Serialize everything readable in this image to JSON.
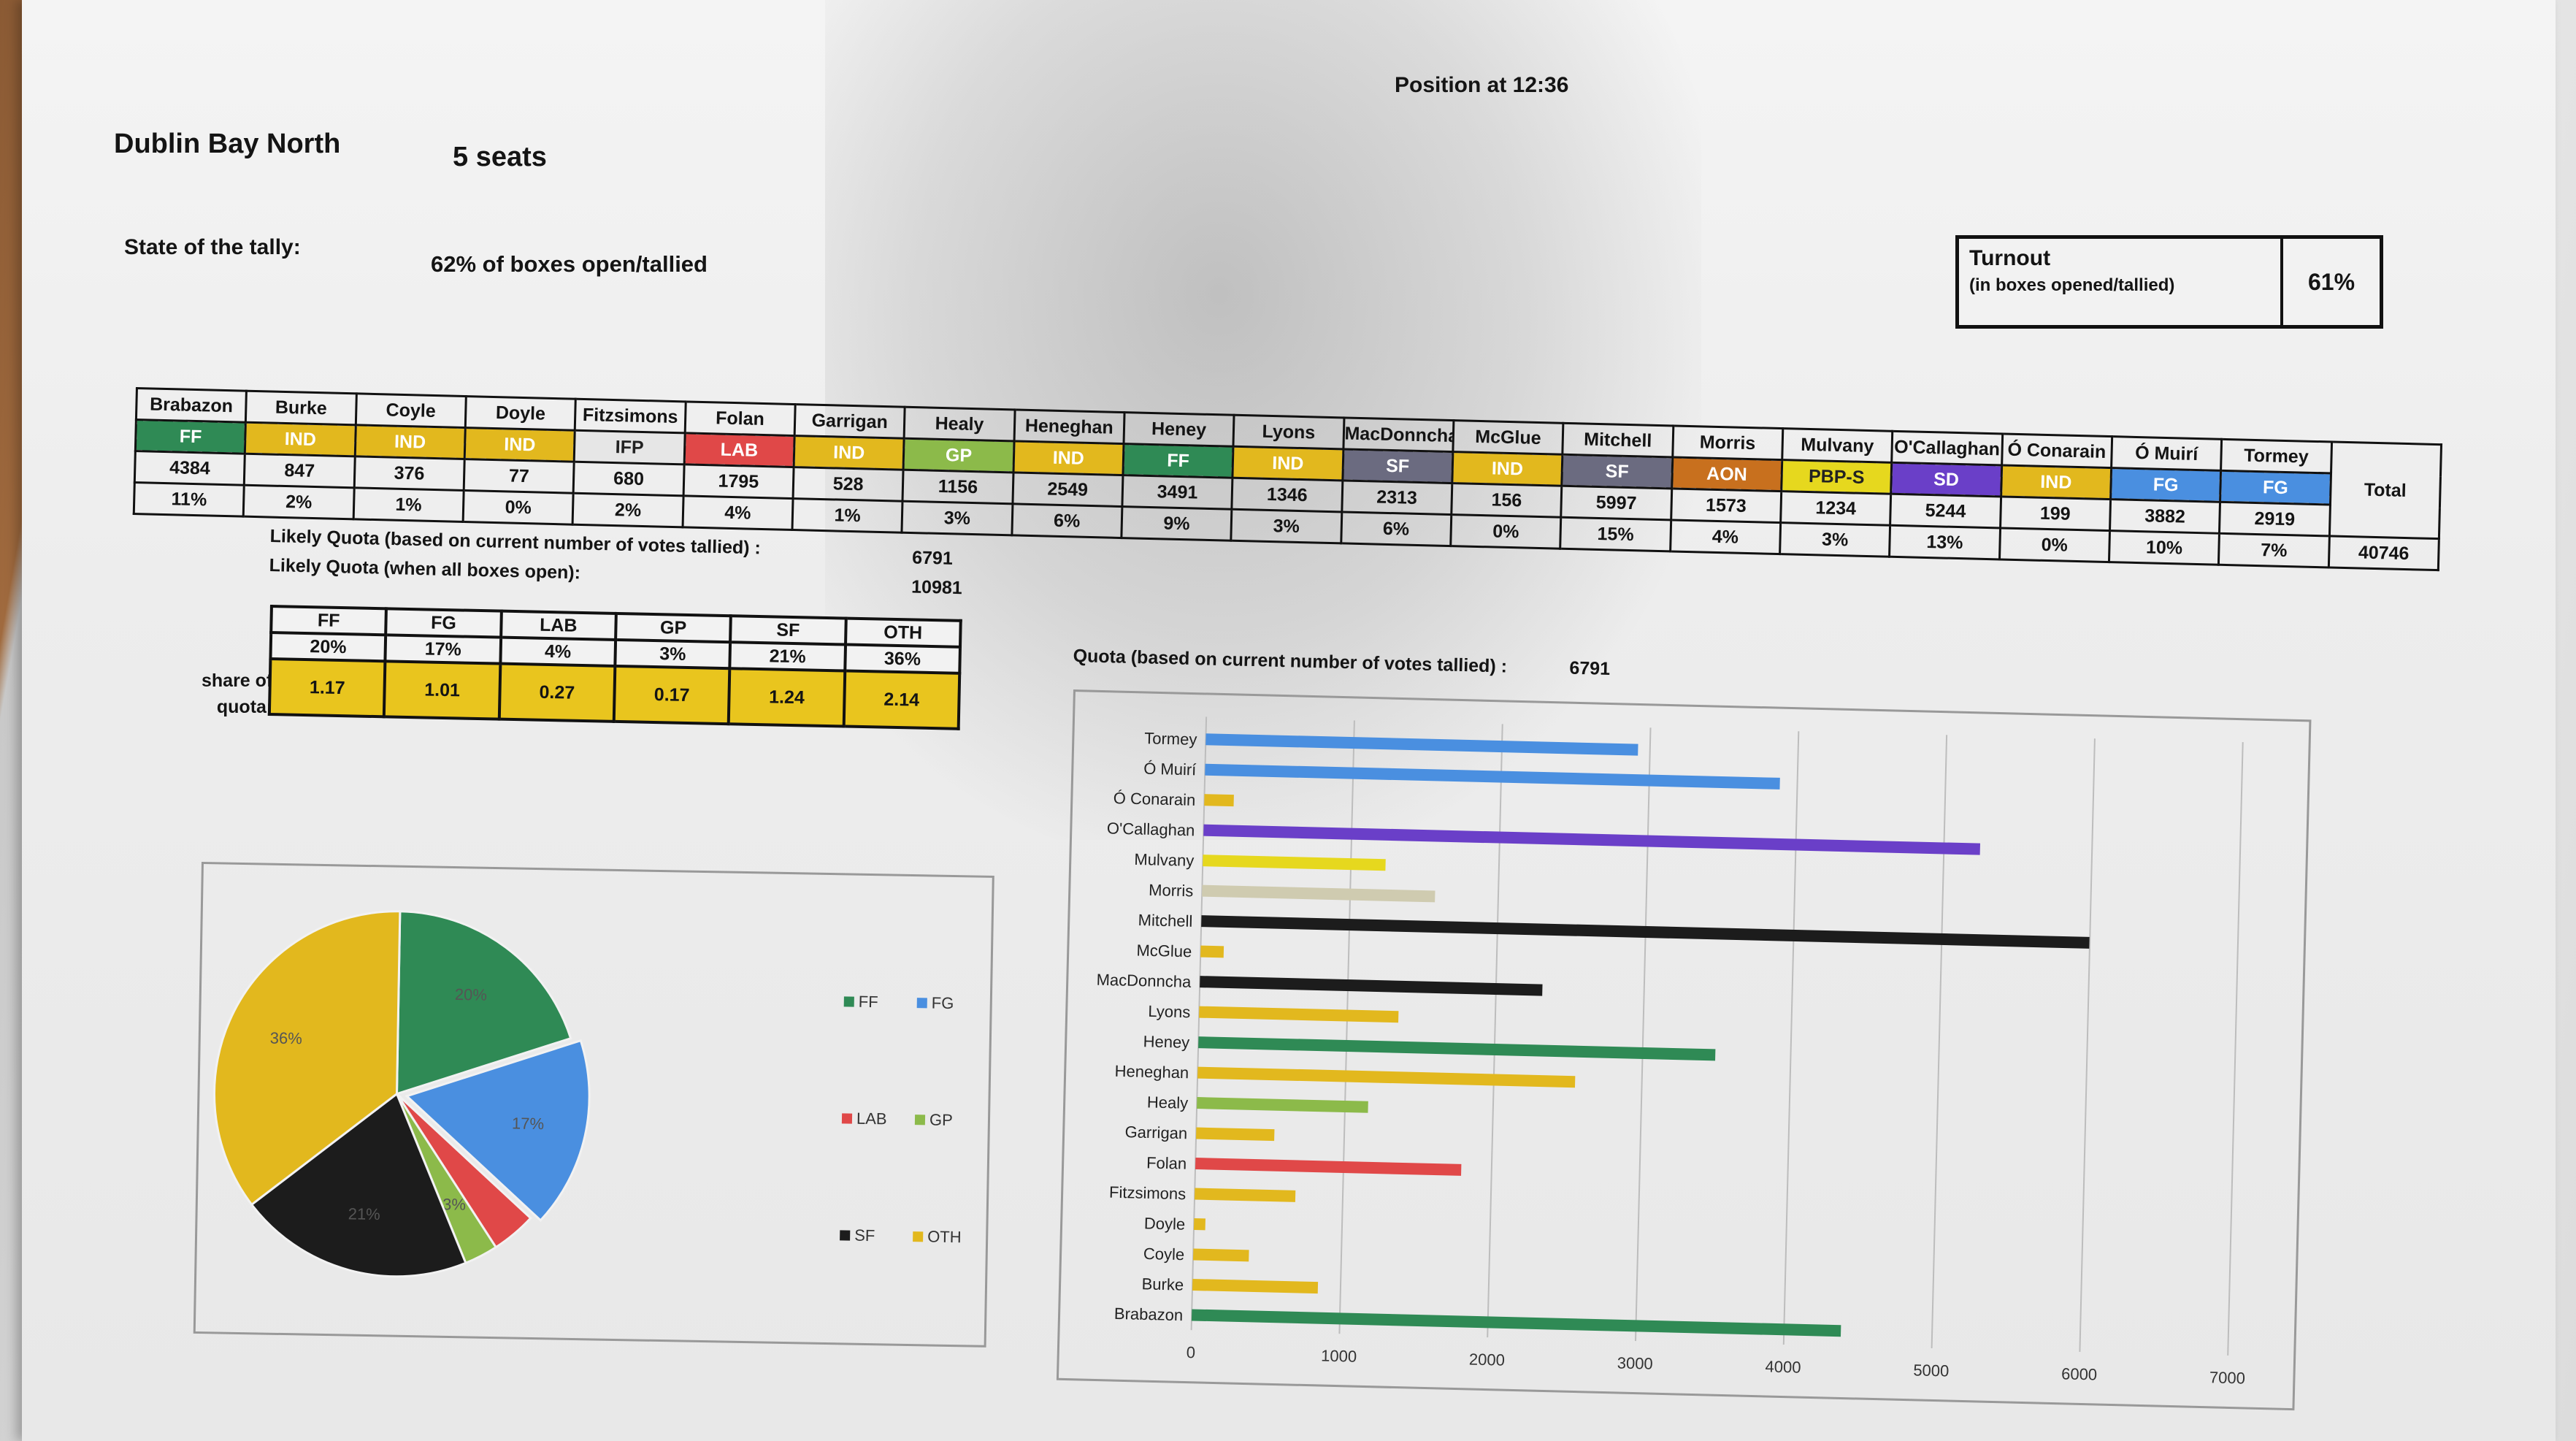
{
  "header": {
    "position": "Position at 12:36",
    "constituency": "Dublin Bay North",
    "seats": "5 seats",
    "state_label": "State of the tally:",
    "state_value": "62% of boxes open/tallied"
  },
  "turnout": {
    "label": "Turnout",
    "sublabel": "(in boxes opened/tallied)",
    "value": "61%"
  },
  "party_colors": {
    "FF": "#2f8a55",
    "FG": "#4a8fe0",
    "LAB": "#e04848",
    "GP": "#8cba4a",
    "SF": "#6b6b80",
    "IND": "#e2b81e",
    "IFP": "#e6e6e6",
    "AON": "#c8701e",
    "PBP-S": "#e6d81e",
    "SD": "#6a3fc8"
  },
  "candidates": [
    {
      "name": "Brabazon",
      "party": "FF",
      "votes": "4384",
      "pct": "11%"
    },
    {
      "name": "Burke",
      "party": "IND",
      "votes": "847",
      "pct": "2%"
    },
    {
      "name": "Coyle",
      "party": "IND",
      "votes": "376",
      "pct": "1%"
    },
    {
      "name": "Doyle",
      "party": "IND",
      "votes": "77",
      "pct": "0%"
    },
    {
      "name": "Fitzsimons",
      "party": "IFP",
      "votes": "680",
      "pct": "2%"
    },
    {
      "name": "Folan",
      "party": "LAB",
      "votes": "1795",
      "pct": "4%"
    },
    {
      "name": "Garrigan",
      "party": "IND",
      "votes": "528",
      "pct": "1%"
    },
    {
      "name": "Healy",
      "party": "GP",
      "votes": "1156",
      "pct": "3%"
    },
    {
      "name": "Heneghan",
      "party": "IND",
      "votes": "2549",
      "pct": "6%"
    },
    {
      "name": "Heney",
      "party": "FF",
      "votes": "3491",
      "pct": "9%"
    },
    {
      "name": "Lyons",
      "party": "IND",
      "votes": "1346",
      "pct": "3%"
    },
    {
      "name": "MacDonncha",
      "party": "SF",
      "votes": "2313",
      "pct": "6%"
    },
    {
      "name": "McGlue",
      "party": "IND",
      "votes": "156",
      "pct": "0%"
    },
    {
      "name": "Mitchell",
      "party": "SF",
      "votes": "5997",
      "pct": "15%"
    },
    {
      "name": "Morris",
      "party": "AON",
      "votes": "1573",
      "pct": "4%"
    },
    {
      "name": "Mulvany",
      "party": "PBP-S",
      "votes": "1234",
      "pct": "3%"
    },
    {
      "name": "O'Callaghan",
      "party": "SD",
      "votes": "5244",
      "pct": "13%"
    },
    {
      "name": "Ó Conarain",
      "party": "IND",
      "votes": "199",
      "pct": "0%"
    },
    {
      "name": "Ó Muirí",
      "party": "FG",
      "votes": "3882",
      "pct": "10%"
    },
    {
      "name": "Tormey",
      "party": "FG",
      "votes": "2919",
      "pct": "7%"
    }
  ],
  "total": {
    "label": "Total",
    "value": "40746"
  },
  "quota": {
    "current_label": "Likely Quota (based on current number of votes tallied) :",
    "current_value": "6791",
    "all_label": "Likely Quota (when all boxes open):",
    "all_value": "10981"
  },
  "share_table": {
    "label_line1": "share of",
    "label_line2": "quota:",
    "parties": [
      "FF",
      "FG",
      "LAB",
      "GP",
      "SF",
      "OTH"
    ],
    "pct": [
      "20%",
      "17%",
      "4%",
      "3%",
      "21%",
      "36%"
    ],
    "share": [
      "1.17",
      "1.01",
      "0.27",
      "0.17",
      "1.24",
      "2.14"
    ]
  },
  "bar_caption": {
    "label": "Quota (based on current number of votes tallied) :",
    "value": "6791"
  },
  "chart_data": [
    {
      "type": "pie",
      "categories": [
        "FF",
        "FG",
        "LAB",
        "GP",
        "SF",
        "OTH"
      ],
      "values": [
        20,
        17,
        4,
        3,
        21,
        36
      ],
      "data_labels": [
        "20%",
        "17%",
        "",
        "3%",
        "21%",
        "36%"
      ],
      "colors": [
        "#2f8a55",
        "#4a8fe0",
        "#e04848",
        "#8cba4a",
        "#1c1c1c",
        "#e2b81e"
      ],
      "legend": [
        "FF",
        "FG",
        "LAB",
        "GP",
        "SF",
        "OTH"
      ],
      "legend_placement": "right"
    },
    {
      "type": "bar",
      "orientation": "horizontal",
      "categories": [
        "Tormey",
        "Ó Muirí",
        "Ó Conarain",
        "O'Callaghan",
        "Mulvany",
        "Morris",
        "Mitchell",
        "McGlue",
        "MacDonncha",
        "Lyons",
        "Heney",
        "Heneghan",
        "Healy",
        "Garrigan",
        "Folan",
        "Fitzsimons",
        "Doyle",
        "Coyle",
        "Burke",
        "Brabazon"
      ],
      "values": [
        2919,
        3882,
        199,
        5244,
        1234,
        1573,
        5997,
        156,
        2313,
        1346,
        3491,
        2549,
        1156,
        528,
        1795,
        680,
        77,
        376,
        847,
        4384
      ],
      "colors": [
        "#4a8fe0",
        "#4a8fe0",
        "#e2b81e",
        "#6a3fc8",
        "#e6d81e",
        "#cfcbb0",
        "#1c1c1c",
        "#e2b81e",
        "#1c1c1c",
        "#e2b81e",
        "#2f8a55",
        "#e2b81e",
        "#8cba4a",
        "#e2b81e",
        "#e04848",
        "#e2b81e",
        "#e2b81e",
        "#e2b81e",
        "#e2b81e",
        "#2f8a55"
      ],
      "xlim": [
        0,
        7000
      ],
      "xticks": [
        "0",
        "1000",
        "2000",
        "3000",
        "4000",
        "5000",
        "6000",
        "7000"
      ],
      "grid": true
    }
  ]
}
